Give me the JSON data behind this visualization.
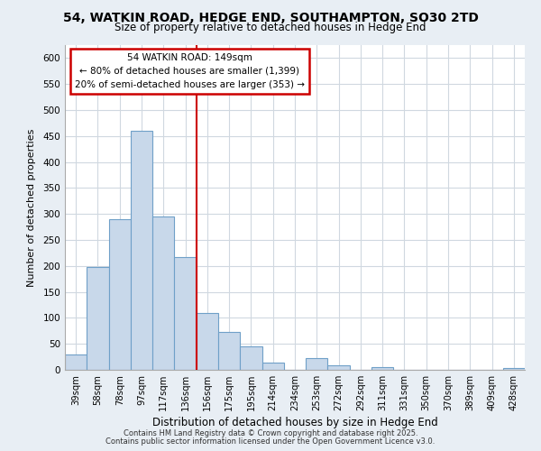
{
  "title1": "54, WATKIN ROAD, HEDGE END, SOUTHAMPTON, SO30 2TD",
  "title2": "Size of property relative to detached houses in Hedge End",
  "xlabel": "Distribution of detached houses by size in Hedge End",
  "ylabel": "Number of detached properties",
  "categories": [
    "39sqm",
    "58sqm",
    "78sqm",
    "97sqm",
    "117sqm",
    "136sqm",
    "156sqm",
    "175sqm",
    "195sqm",
    "214sqm",
    "234sqm",
    "253sqm",
    "272sqm",
    "292sqm",
    "311sqm",
    "331sqm",
    "350sqm",
    "370sqm",
    "389sqm",
    "409sqm",
    "428sqm"
  ],
  "values": [
    30,
    198,
    290,
    460,
    295,
    217,
    110,
    73,
    46,
    14,
    0,
    22,
    8,
    0,
    5,
    0,
    0,
    0,
    0,
    0,
    3
  ],
  "bar_color": "#c8d8ea",
  "bar_edge_color": "#6fa0c8",
  "vline_color": "#cc0000",
  "vline_pos": 5,
  "annotation_title": "54 WATKIN ROAD: 149sqm",
  "annotation_line1": "← 80% of detached houses are smaller (1,399)",
  "annotation_line2": "20% of semi-detached houses are larger (353) →",
  "box_color": "#cc0000",
  "ylim": [
    0,
    625
  ],
  "yticks": [
    0,
    50,
    100,
    150,
    200,
    250,
    300,
    350,
    400,
    450,
    500,
    550,
    600
  ],
  "footnote1": "Contains HM Land Registry data © Crown copyright and database right 2025.",
  "footnote2": "Contains public sector information licensed under the Open Government Licence v3.0.",
  "bg_color": "#e8eef4",
  "plot_bg_color": "#ffffff",
  "grid_color": "#d0d8e0"
}
